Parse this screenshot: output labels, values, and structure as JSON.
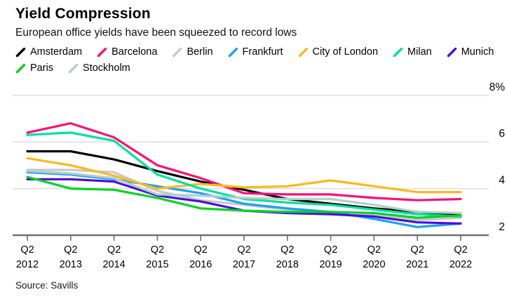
{
  "header": {
    "title": "Yield Compression",
    "subtitle": "European office yields have been squeezed to record lows"
  },
  "source": "Source: Savills",
  "style": {
    "grid_color": "#d9d9d9",
    "axis_color": "#6f6f6f",
    "label_color": "#000000",
    "line_width": 3.2
  },
  "chart_data": {
    "type": "line",
    "title": "Yield Compression",
    "subtitle": "European office yields have been squeezed to record lows",
    "x_label_top": "Q2",
    "categories": [
      "2012",
      "2013",
      "2014",
      "2015",
      "2016",
      "2017",
      "2018",
      "2019",
      "2020",
      "2021",
      "2022"
    ],
    "ylim": [
      2,
      8
    ],
    "yticks": [
      2,
      4,
      6,
      8
    ],
    "ytick_labels": [
      "2",
      "4",
      "6",
      "8%"
    ],
    "grid": "horizontal",
    "legend_position": "top",
    "series": [
      {
        "name": "Amsterdam",
        "color": "#000000",
        "values": [
          5.6,
          5.6,
          5.25,
          4.75,
          4.3,
          3.95,
          3.55,
          3.35,
          3.15,
          3.0,
          2.85
        ]
      },
      {
        "name": "Barcelona",
        "color": "#fa0f78",
        "values": [
          6.4,
          6.8,
          6.2,
          5.0,
          4.45,
          3.8,
          3.75,
          3.75,
          3.6,
          3.5,
          3.55
        ]
      },
      {
        "name": "Berlin",
        "color": "#c8c8c8",
        "values": [
          4.8,
          4.8,
          4.7,
          3.9,
          3.5,
          3.3,
          3.1,
          2.95,
          2.85,
          2.65,
          2.75
        ]
      },
      {
        "name": "Frankfurt",
        "color": "#18a0fb",
        "values": [
          4.7,
          4.6,
          4.4,
          4.1,
          3.8,
          3.35,
          3.15,
          3.0,
          2.7,
          2.35,
          2.5
        ]
      },
      {
        "name": "City of London",
        "color": "#fcb81e",
        "values": [
          5.3,
          5.0,
          4.55,
          4.0,
          4.2,
          4.05,
          4.1,
          4.35,
          4.1,
          3.85,
          3.85
        ]
      },
      {
        "name": "Milan",
        "color": "#00e0a0",
        "values": [
          6.3,
          6.4,
          6.05,
          4.6,
          4.0,
          3.55,
          3.4,
          3.3,
          3.1,
          2.9,
          2.8
        ]
      },
      {
        "name": "Munich",
        "color": "#4a0ce0",
        "values": [
          4.4,
          4.4,
          4.3,
          3.7,
          3.45,
          3.05,
          2.95,
          2.9,
          2.8,
          2.55,
          2.5
        ]
      },
      {
        "name": "Paris",
        "color": "#00d41e",
        "values": [
          4.5,
          4.0,
          3.95,
          3.6,
          3.15,
          3.05,
          3.0,
          3.0,
          2.95,
          2.75,
          2.85
        ]
      },
      {
        "name": "Stockholm",
        "color": "#b2cfc8",
        "values": [
          4.75,
          4.65,
          4.45,
          3.75,
          3.7,
          3.6,
          3.55,
          3.55,
          3.3,
          3.0,
          2.95
        ]
      }
    ]
  }
}
